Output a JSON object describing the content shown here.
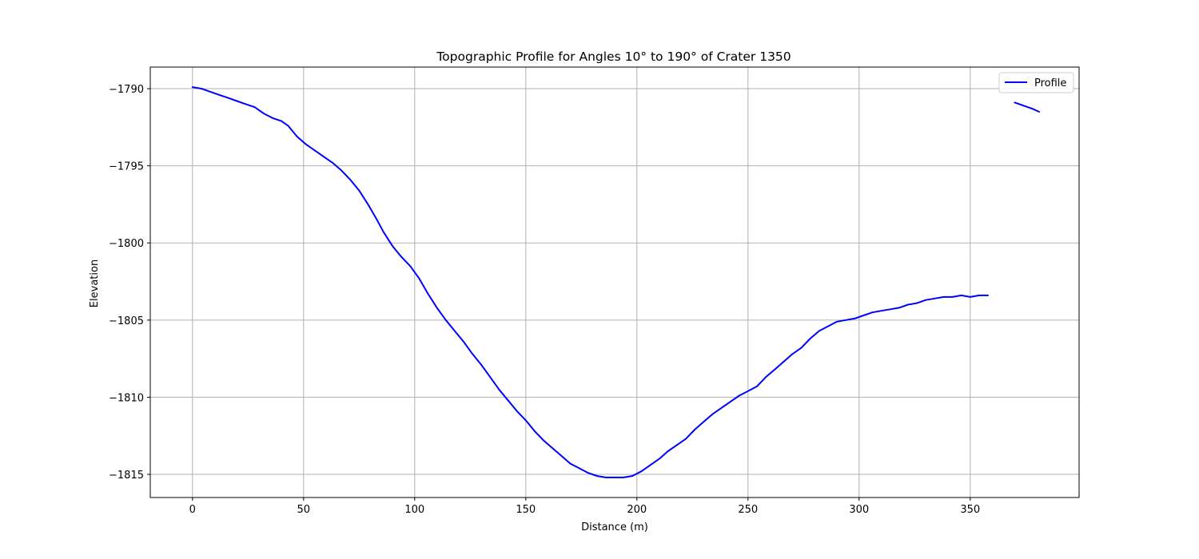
{
  "chart_data": {
    "type": "line",
    "title": "Topographic Profile for Angles 10° to 190° of Crater 1350",
    "xlabel": "Distance (m)",
    "ylabel": "Elevation",
    "xlim": [
      -19,
      399
    ],
    "ylim": [
      -1816.5,
      -1788.6
    ],
    "xticks": [
      0,
      50,
      100,
      150,
      200,
      250,
      300,
      350
    ],
    "yticks": [
      -1790,
      -1795,
      -1800,
      -1805,
      -1810,
      -1815
    ],
    "xtick_labels": [
      "0",
      "50",
      "100",
      "150",
      "200",
      "250",
      "300",
      "350"
    ],
    "ytick_labels": [
      "−1790",
      "−1795",
      "−1800",
      "−1805",
      "−1810",
      "−1815"
    ],
    "grid": true,
    "legend_position": "top-right",
    "line_color": "#0000ff",
    "series": [
      {
        "name": "Profile",
        "segments": [
          {
            "x": [
              0,
              4,
              8,
              12,
              16,
              20,
              24,
              28,
              32,
              36,
              40,
              43,
              47,
              51,
              55,
              59,
              63,
              67,
              71,
              75,
              79,
              83,
              86,
              90,
              94,
              98,
              102,
              106,
              110,
              114,
              118,
              122,
              126,
              130,
              134,
              138,
              142,
              146,
              150,
              154,
              158,
              162,
              166,
              170,
              174,
              178,
              182,
              186,
              190,
              194,
              198,
              202,
              206,
              210,
              214,
              218,
              222,
              226,
              230,
              234,
              238,
              242,
              246,
              250,
              254,
              258,
              262,
              266,
              270,
              274,
              278,
              282,
              286,
              290,
              294,
              298,
              302,
              306,
              310,
              314,
              318,
              322,
              326,
              330,
              334,
              338,
              342,
              346,
              350,
              354,
              358
            ],
            "y": [
              -1789.9,
              -1790.0,
              -1790.2,
              -1790.4,
              -1790.6,
              -1790.8,
              -1791.0,
              -1791.2,
              -1791.6,
              -1791.9,
              -1792.1,
              -1792.4,
              -1793.1,
              -1793.6,
              -1794.0,
              -1794.4,
              -1794.8,
              -1795.3,
              -1795.9,
              -1796.6,
              -1797.5,
              -1798.5,
              -1799.3,
              -1800.2,
              -1800.9,
              -1801.5,
              -1802.3,
              -1803.3,
              -1804.2,
              -1805.0,
              -1805.7,
              -1806.4,
              -1807.2,
              -1807.9,
              -1808.7,
              -1809.5,
              -1810.2,
              -1810.9,
              -1811.5,
              -1812.2,
              -1812.8,
              -1813.3,
              -1813.8,
              -1814.3,
              -1814.6,
              -1814.9,
              -1815.1,
              -1815.2,
              -1815.2,
              -1815.2,
              -1815.1,
              -1814.8,
              -1814.4,
              -1814.0,
              -1813.5,
              -1813.1,
              -1812.7,
              -1812.1,
              -1811.6,
              -1811.1,
              -1810.7,
              -1810.3,
              -1809.9,
              -1809.6,
              -1809.3,
              -1808.7,
              -1808.2,
              -1807.7,
              -1807.2,
              -1806.8,
              -1806.2,
              -1805.7,
              -1805.4,
              -1805.1,
              -1805.0,
              -1804.9,
              -1804.7,
              -1804.5,
              -1804.4,
              -1804.3,
              -1804.2,
              -1804.0,
              -1803.9,
              -1803.7,
              -1803.6,
              -1803.5,
              -1803.5,
              -1803.4,
              -1803.5,
              -1803.4,
              -1803.4
            ]
          },
          {
            "x": [
              370,
              374,
              378,
              381
            ],
            "y": [
              -1790.9,
              -1791.1,
              -1791.3,
              -1791.5
            ]
          }
        ]
      }
    ]
  }
}
